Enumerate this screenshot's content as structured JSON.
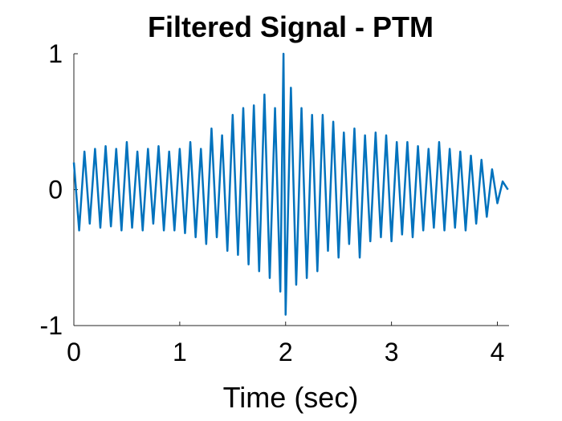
{
  "chart_data": {
    "type": "line",
    "title": "Filtered Signal - PTM",
    "xlabel": "Time (sec)",
    "x": [
      0,
      0.05,
      0.1,
      0.15,
      0.2,
      0.25,
      0.3,
      0.35,
      0.4,
      0.45,
      0.5,
      0.55,
      0.6,
      0.65,
      0.7,
      0.75,
      0.8,
      0.85,
      0.9,
      0.95,
      1.0,
      1.05,
      1.1,
      1.15,
      1.2,
      1.25,
      1.3,
      1.35,
      1.4,
      1.45,
      1.5,
      1.55,
      1.6,
      1.65,
      1.7,
      1.75,
      1.8,
      1.85,
      1.9,
      1.95,
      1.98,
      2.0,
      2.05,
      2.1,
      2.15,
      2.2,
      2.25,
      2.3,
      2.35,
      2.4,
      2.45,
      2.5,
      2.55,
      2.6,
      2.65,
      2.7,
      2.75,
      2.8,
      2.85,
      2.9,
      2.95,
      3.0,
      3.05,
      3.1,
      3.15,
      3.2,
      3.25,
      3.3,
      3.35,
      3.4,
      3.45,
      3.5,
      3.55,
      3.6,
      3.65,
      3.7,
      3.75,
      3.8,
      3.85,
      3.9,
      3.95,
      4.0,
      4.05,
      4.1
    ],
    "series": [
      {
        "color": "#0072bd",
        "values": [
          0.2,
          -0.3,
          0.28,
          -0.25,
          0.3,
          -0.28,
          0.32,
          -0.27,
          0.3,
          -0.3,
          0.35,
          -0.28,
          0.28,
          -0.3,
          0.3,
          -0.25,
          0.32,
          -0.3,
          0.28,
          -0.3,
          0.3,
          -0.32,
          0.35,
          -0.35,
          0.3,
          -0.4,
          0.45,
          -0.35,
          0.4,
          -0.45,
          0.55,
          -0.48,
          0.6,
          -0.55,
          0.62,
          -0.6,
          0.7,
          -0.65,
          0.6,
          -0.75,
          1.0,
          -0.92,
          0.75,
          -0.7,
          0.6,
          -0.65,
          0.55,
          -0.6,
          0.55,
          -0.45,
          0.5,
          -0.5,
          0.42,
          -0.4,
          0.45,
          -0.5,
          0.4,
          -0.38,
          0.42,
          -0.35,
          0.4,
          -0.38,
          0.35,
          -0.33,
          0.35,
          -0.35,
          0.32,
          -0.3,
          0.3,
          -0.28,
          0.35,
          -0.3,
          0.3,
          -0.28,
          0.28,
          -0.3,
          0.25,
          -0.25,
          0.22,
          -0.2,
          0.15,
          -0.1,
          0.06,
          0.0
        ]
      }
    ],
    "xlim": [
      0,
      4.11
    ],
    "xticks": [
      0,
      1,
      2,
      3,
      4
    ],
    "ylim": [
      -1,
      1
    ],
    "yticks": [
      -1,
      0,
      1
    ]
  }
}
